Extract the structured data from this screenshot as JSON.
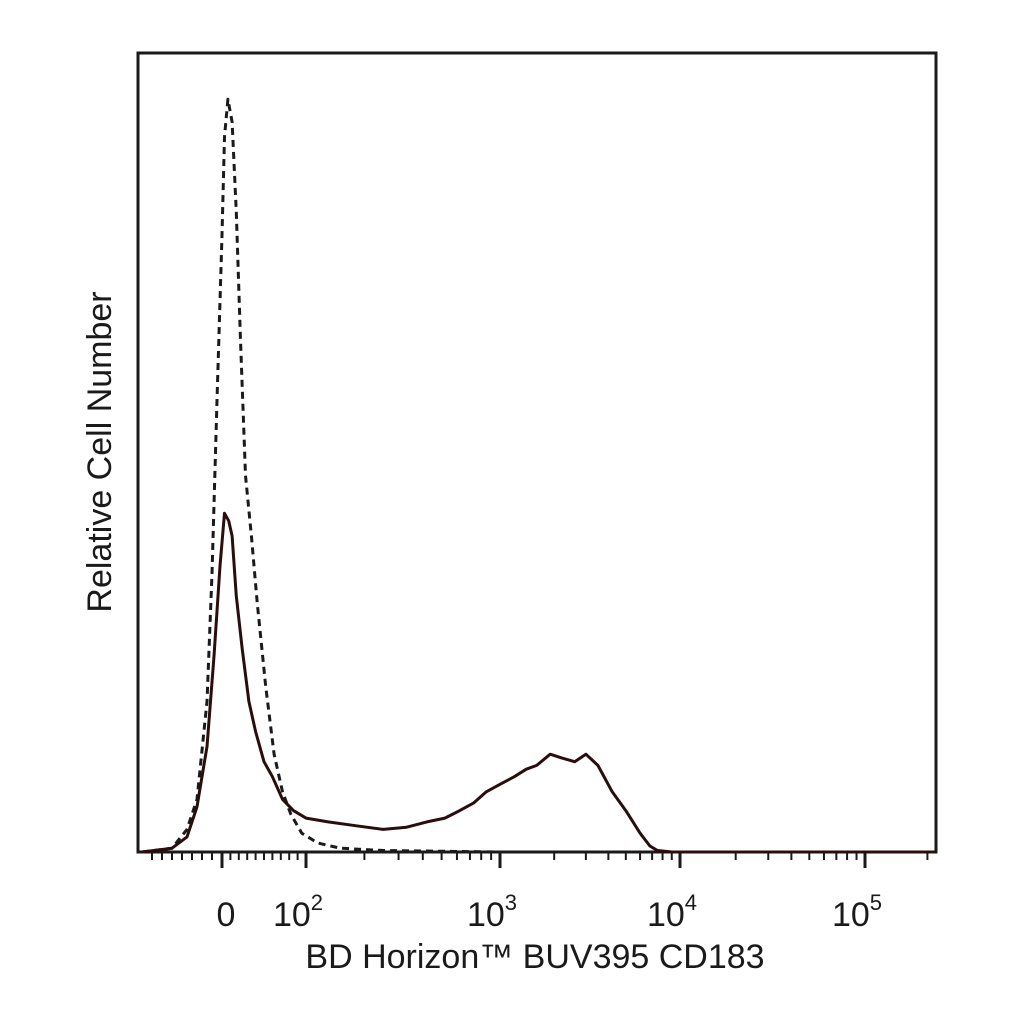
{
  "chart_data": {
    "type": "line",
    "title": "",
    "xlabel": "BD Horizon™ BUV395 CD183",
    "ylabel": "Relative Cell Number",
    "x_scale": "biexponential",
    "xlim": [
      -80,
      220000
    ],
    "ylim": [
      0,
      1.0
    ],
    "x_tick_labels": [
      {
        "value": 0,
        "base": "0",
        "sup": ""
      },
      {
        "value": 100,
        "base": "10",
        "sup": "2"
      },
      {
        "value": 1000,
        "base": "10",
        "sup": "3"
      },
      {
        "value": 10000,
        "base": "10",
        "sup": "4"
      },
      {
        "value": 100000,
        "base": "10",
        "sup": "5"
      }
    ],
    "grid": false,
    "legend": "none",
    "series": [
      {
        "style": "dashed",
        "color": "#1a1a1a",
        "points": [
          [
            -80,
            0
          ],
          [
            -50,
            0.005
          ],
          [
            -35,
            0.03
          ],
          [
            -25,
            0.07
          ],
          [
            -15,
            0.2
          ],
          [
            -10,
            0.37
          ],
          [
            -5,
            0.6
          ],
          [
            0,
            0.82
          ],
          [
            3,
            0.95
          ],
          [
            7,
            1.0
          ],
          [
            12,
            0.97
          ],
          [
            17,
            0.85
          ],
          [
            22,
            0.68
          ],
          [
            28,
            0.5
          ],
          [
            35,
            0.42
          ],
          [
            42,
            0.33
          ],
          [
            52,
            0.22
          ],
          [
            62,
            0.13
          ],
          [
            72,
            0.08
          ],
          [
            82,
            0.05
          ],
          [
            95,
            0.025
          ],
          [
            115,
            0.012
          ],
          [
            150,
            0.005
          ],
          [
            250,
            0.002
          ],
          [
            1000,
            0
          ],
          [
            220000,
            0
          ]
        ]
      },
      {
        "style": "solid",
        "color": "#2a0d0d",
        "points": [
          [
            -80,
            0
          ],
          [
            -50,
            0.005
          ],
          [
            -35,
            0.02
          ],
          [
            -25,
            0.06
          ],
          [
            -15,
            0.14
          ],
          [
            -8,
            0.26
          ],
          [
            -2,
            0.38
          ],
          [
            3,
            0.45
          ],
          [
            8,
            0.44
          ],
          [
            12,
            0.42
          ],
          [
            17,
            0.34
          ],
          [
            24,
            0.27
          ],
          [
            32,
            0.2
          ],
          [
            40,
            0.16
          ],
          [
            50,
            0.12
          ],
          [
            60,
            0.1
          ],
          [
            72,
            0.07
          ],
          [
            85,
            0.055
          ],
          [
            100,
            0.045
          ],
          [
            130,
            0.04
          ],
          [
            180,
            0.035
          ],
          [
            250,
            0.03
          ],
          [
            330,
            0.033
          ],
          [
            420,
            0.04
          ],
          [
            520,
            0.045
          ],
          [
            620,
            0.055
          ],
          [
            730,
            0.065
          ],
          [
            850,
            0.08
          ],
          [
            1000,
            0.09
          ],
          [
            1200,
            0.1
          ],
          [
            1400,
            0.11
          ],
          [
            1600,
            0.115
          ],
          [
            1900,
            0.13
          ],
          [
            2200,
            0.125
          ],
          [
            2600,
            0.12
          ],
          [
            3000,
            0.13
          ],
          [
            3500,
            0.115
          ],
          [
            4200,
            0.08
          ],
          [
            5000,
            0.055
          ],
          [
            6000,
            0.025
          ],
          [
            6800,
            0.008
          ],
          [
            7500,
            0.002
          ],
          [
            9000,
            0
          ],
          [
            220000,
            0
          ]
        ]
      }
    ]
  }
}
